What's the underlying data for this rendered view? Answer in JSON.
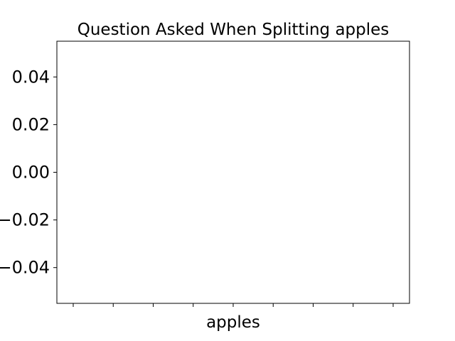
{
  "chart_data": {
    "type": "bar",
    "title": "Question Asked When Splitting apples",
    "xlabel": "apples",
    "ylabel": "",
    "categories": [],
    "values": [],
    "x_tick_count": 9,
    "ylim": [
      -0.055,
      0.055
    ],
    "yticks": [
      -0.04,
      -0.02,
      0.0,
      0.02,
      0.04
    ],
    "ytick_labels": [
      "−0.04",
      "−0.02",
      "0.00",
      "0.02",
      "0.04"
    ],
    "grid": false,
    "legend": "none"
  }
}
